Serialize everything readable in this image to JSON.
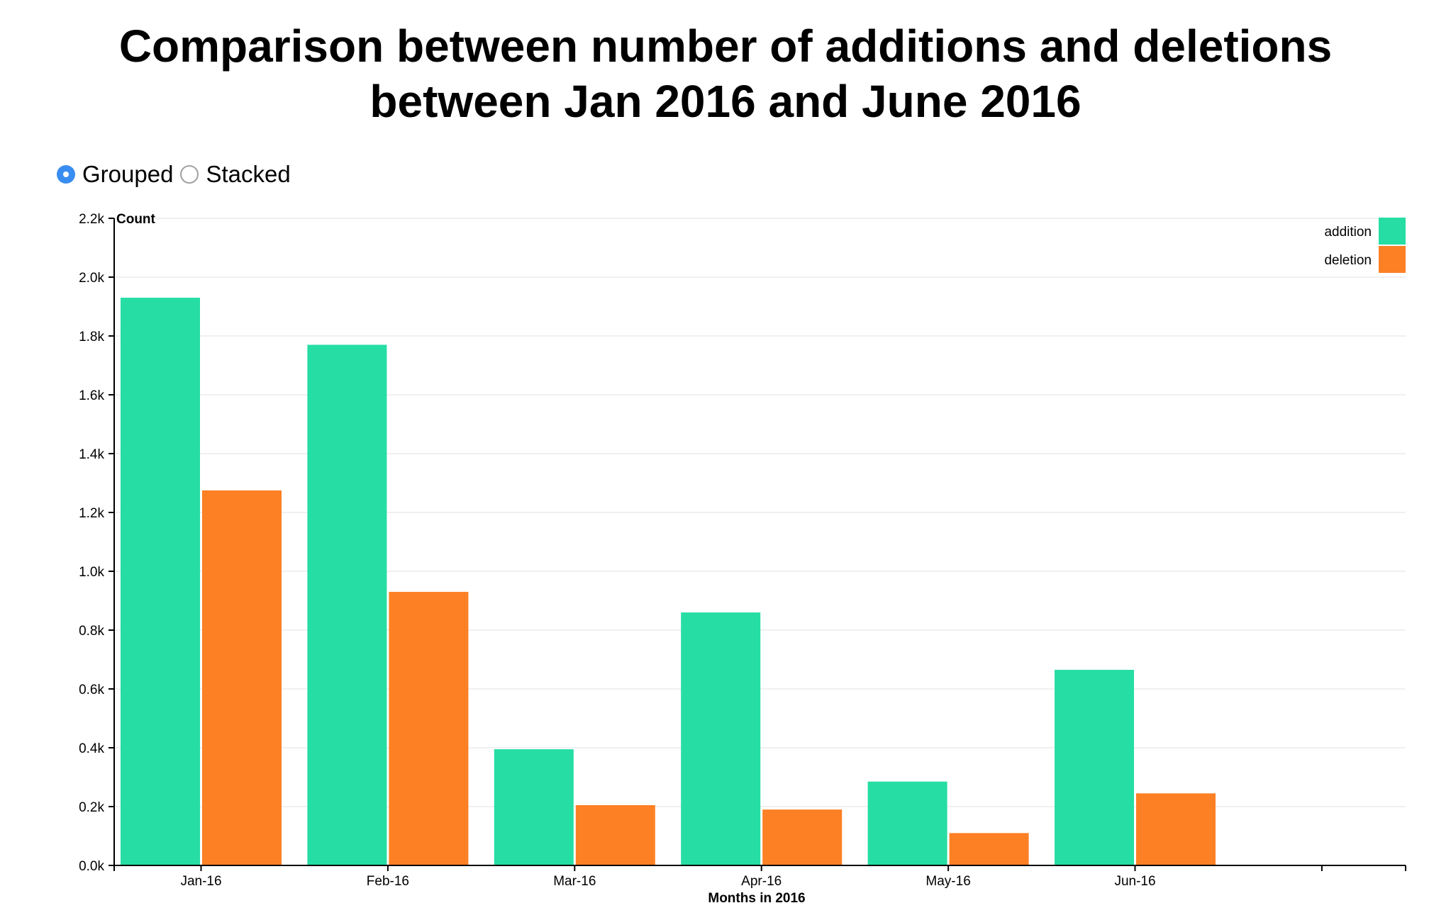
{
  "title_line1": "Comparison between number of additions and deletions",
  "title_line2": "between Jan 2016 and June 2016",
  "mode_options": [
    {
      "label": "Grouped",
      "selected": true
    },
    {
      "label": "Stacked",
      "selected": false
    }
  ],
  "chart_data": {
    "type": "bar",
    "title": "Comparison between number of additions and deletions between Jan 2016 and June 2016",
    "xlabel": "Months in 2016",
    "ylabel": "Count",
    "categories": [
      "Jan-16",
      "Feb-16",
      "Mar-16",
      "Apr-16",
      "May-16",
      "Jun-16"
    ],
    "series": [
      {
        "name": "addition",
        "color": "#26dda4",
        "values": [
          1930,
          1770,
          395,
          860,
          285,
          665
        ]
      },
      {
        "name": "deletion",
        "color": "#fd8025",
        "values": [
          1275,
          930,
          205,
          190,
          110,
          245
        ]
      }
    ],
    "ylim": [
      0,
      2200
    ],
    "yticks": [
      0,
      200,
      400,
      600,
      800,
      1000,
      1200,
      1400,
      1600,
      1800,
      2000,
      2200
    ],
    "ytick_labels": [
      "0.0k",
      "0.2k",
      "0.4k",
      "0.6k",
      "0.8k",
      "1.0k",
      "1.2k",
      "1.4k",
      "1.6k",
      "1.8k",
      "2.0k",
      "2.2k"
    ],
    "grid": true,
    "legend_position": "top-right",
    "barmode": "grouped"
  }
}
